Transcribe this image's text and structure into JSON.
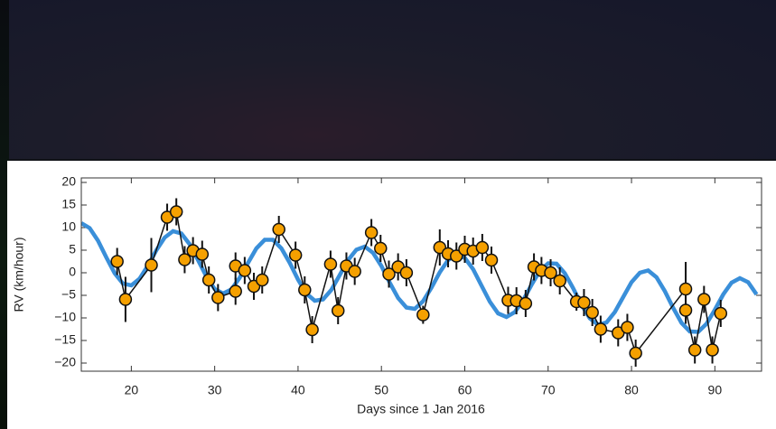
{
  "chart_data": {
    "type": "scatter",
    "x_label": "Days since 1 Jan 2016",
    "y_label": "RV (km/hour)",
    "xlim": [
      14,
      95.6
    ],
    "ylim": [
      -21.8,
      21
    ],
    "xticks": [
      20,
      30,
      40,
      50,
      60,
      70,
      80,
      90
    ],
    "yticks": [
      {
        "value": -20,
        "label": "−20"
      },
      {
        "value": -15,
        "label": "−15"
      },
      {
        "value": -10,
        "label": "−10"
      },
      {
        "value": -5,
        "label": "−5"
      },
      0,
      5,
      10,
      15,
      20
    ],
    "series": [
      {
        "color": "#3a8fd9",
        "x": [
          14,
          15,
          16,
          17,
          18,
          19,
          20,
          21,
          22,
          23,
          24,
          25,
          26,
          27,
          28,
          29,
          30,
          31,
          32,
          33,
          34,
          35,
          36,
          37,
          38,
          39,
          40,
          41,
          42,
          43,
          44,
          45,
          46,
          47,
          48,
          49,
          50,
          51,
          52,
          53,
          54,
          55,
          56,
          57,
          58,
          59,
          60,
          61,
          62,
          63,
          64,
          65,
          66,
          67,
          68,
          69,
          70,
          71,
          72,
          73,
          74,
          75,
          76,
          77,
          78,
          79,
          80,
          81,
          82,
          83,
          84,
          85,
          86,
          87,
          88,
          89,
          90,
          91,
          92,
          93,
          94,
          95
        ],
        "values": [
          11.0,
          9.9,
          7.1,
          3.4,
          -0.1,
          -2.4,
          -2.8,
          -1.3,
          1.6,
          5.0,
          7.8,
          9.2,
          8.7,
          6.3,
          2.8,
          -0.8,
          -3.6,
          -4.6,
          -3.7,
          -1.1,
          2.2,
          5.4,
          7.3,
          7.3,
          5.4,
          2.2,
          -1.5,
          -4.6,
          -6.2,
          -5.9,
          -3.8,
          -0.5,
          2.8,
          5.1,
          5.8,
          4.4,
          1.5,
          -2.2,
          -5.6,
          -7.7,
          -8.0,
          -6.3,
          -3.3,
          0.1,
          2.8,
          4.0,
          3.3,
          0.8,
          -2.8,
          -6.4,
          -9.0,
          -9.8,
          -8.7,
          -6.1,
          -2.7,
          0.4,
          2.1,
          2.0,
          -0.1,
          -3.4,
          -7.1,
          -10.1,
          -11.5,
          -11.0,
          -8.7,
          -5.4,
          -2.1,
          0.0,
          0.5,
          -1.0,
          -4.1,
          -7.8,
          -11.1,
          -13.0,
          -13.1,
          -11.3,
          -8.2,
          -4.8,
          -2.2,
          -1.2,
          -2.1,
          -4.8
        ]
      },
      {
        "color": "#f5a000",
        "x": [
          18.3,
          19.3,
          22.4,
          24.3,
          25.4,
          26.4,
          27.4,
          28.5,
          29.3,
          30.4,
          32.5,
          32.5,
          33.6,
          34.7,
          35.7,
          37.7,
          39.7,
          40.8,
          41.7,
          43.9,
          44.8,
          45.8,
          46.8,
          48.8,
          49.9,
          50.9,
          52.0,
          53.0,
          55.0,
          57.0,
          58.0,
          59.0,
          60.0,
          61.0,
          62.1,
          63.2,
          65.2,
          66.2,
          67.3,
          68.3,
          69.2,
          70.3,
          71.4,
          73.4,
          74.3,
          75.3,
          76.3,
          78.4,
          79.5,
          80.5,
          86.5,
          86.5,
          87.6,
          88.7,
          89.7,
          90.7
        ],
        "values": [
          2.5,
          -5.9,
          1.7,
          12.3,
          13.5,
          2.9,
          4.9,
          4.1,
          -1.6,
          -5.5,
          -4.1,
          1.5,
          0.5,
          -3.0,
          -1.6,
          9.6,
          3.9,
          -3.8,
          -12.6,
          1.9,
          -8.4,
          1.5,
          0.3,
          8.9,
          5.4,
          -0.3,
          1.3,
          0,
          -9.3,
          5.6,
          4.2,
          3.7,
          5.2,
          4.8,
          5.6,
          2.8,
          -6.1,
          -6.2,
          -6.8,
          1.3,
          0.5,
          0,
          -1.8,
          -6.4,
          -6.6,
          -8.8,
          -12.5,
          -13.3,
          -12.1,
          -17.8,
          -3.6,
          -8.3,
          -17.1,
          -5.9,
          -17.1,
          -9.0
        ],
        "errors": [
          3,
          5,
          6,
          3,
          3,
          3,
          3,
          3,
          3,
          3,
          3,
          3,
          3,
          3,
          3,
          3,
          3,
          3,
          3,
          3,
          3,
          3,
          3,
          3,
          3,
          3,
          3,
          3,
          2,
          4,
          3,
          3,
          3,
          3,
          3,
          3,
          3,
          3,
          3,
          3,
          3,
          3,
          3,
          2,
          3,
          3,
          3,
          3,
          3,
          3,
          6,
          3,
          3,
          3,
          3,
          3
        ]
      }
    ]
  }
}
